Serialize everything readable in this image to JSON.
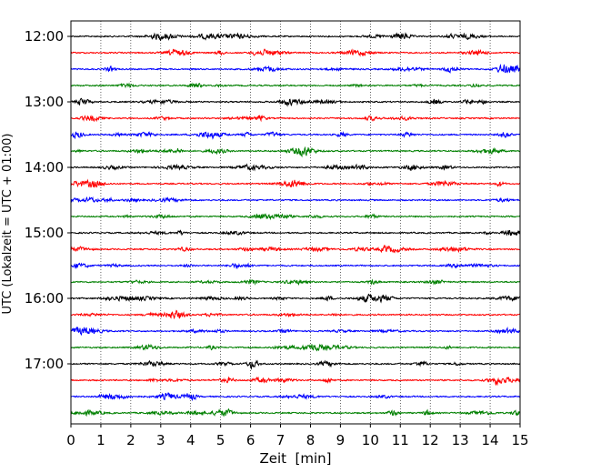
{
  "chart_data": {
    "type": "line",
    "title": "",
    "xlabel": "Zeit  [min]",
    "ylabel": "UTC (Lokalzeit = UTC + 01:00)",
    "xlim": [
      0,
      15
    ],
    "x_ticks": [
      "0",
      "1",
      "2",
      "3",
      "4",
      "5",
      "6",
      "7",
      "8",
      "9",
      "10",
      "11",
      "12",
      "13",
      "14",
      "15"
    ],
    "y_ticks": [
      "12:00",
      "13:00",
      "14:00",
      "15:00",
      "16:00",
      "17:00"
    ],
    "trace_interval_minutes": 15,
    "trace_start": "12:00",
    "trace_count": 24,
    "trace_colors": [
      "#000000",
      "#ff0000",
      "#0000ff",
      "#008000"
    ],
    "vertical_grid": true,
    "grid_style": "dotted",
    "legend": "none"
  }
}
